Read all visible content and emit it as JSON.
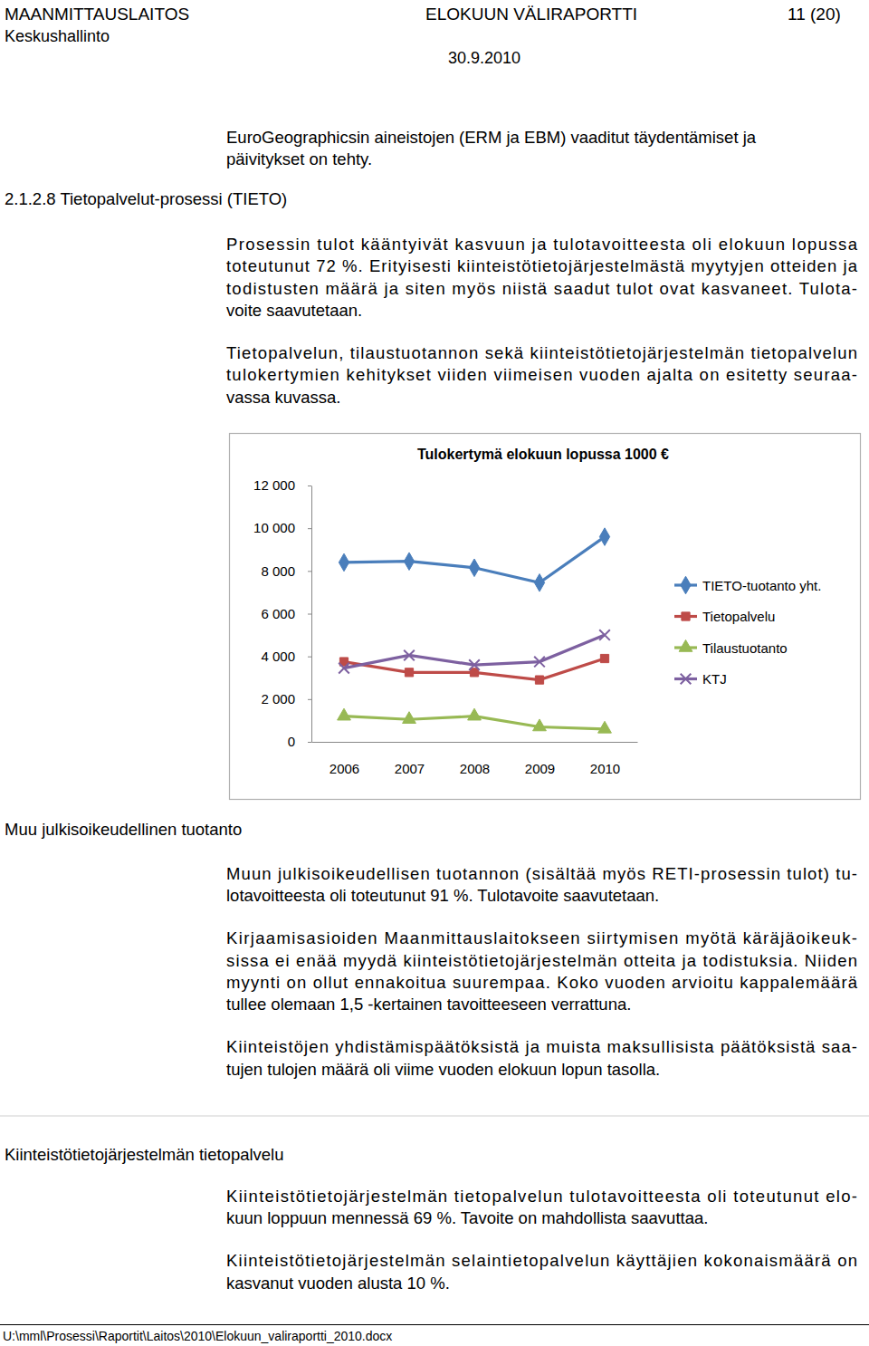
{
  "header": {
    "organization": "MAANMITTAUSLAITOS",
    "unit": "Keskushallinto",
    "document": "ELOKUUN VÄLIRAPORTTI",
    "page": "11 (20)",
    "date": "30.9.2010"
  },
  "sections": [
    {
      "paragraphs": [
        [
          "EuroGeographicsin aineistojen (ERM ja EBM) vaaditut täydentämiset ja",
          "päivitykset on tehty."
        ]
      ]
    },
    {
      "heading": "2.1.2.8 Tietopalvelut-prosessi (TIETO)",
      "paragraphs": [
        [
          "Prosessin tulot kääntyivät kasvuun ja tulotavoitteesta oli elokuun lopussa",
          "toteutunut 72 %. Erityisesti kiinteistötietojärjestelmästä myytyjen otteiden ja",
          "todistusten määrä ja siten myös niistä saadut tulot ovat kasvaneet. Tulota-",
          "voite saavutetaan."
        ],
        [
          "Tietopalvelun, tilaustuotannon sekä kiinteistötietojärjestelmän tietopalvelun",
          "tulokertymien kehitykset viiden viimeisen vuoden ajalta on esitetty seuraa-",
          "vassa kuvassa."
        ]
      ]
    },
    {
      "heading": "Muu julkisoikeudellinen tuotanto",
      "paragraphs": [
        [
          "Muun julkisoikeudellisen tuotannon (sisältää myös RETI-prosessin tulot) tu-",
          "lotavoitteesta oli toteutunut 91 %. Tulotavoite saavutetaan."
        ],
        [
          "Kirjaamisasioiden Maanmittauslaitokseen siirtymisen myötä käräjäoikeuk-",
          "sissa ei enää myydä kiinteistötietojärjestelmän otteita ja todistuksia. Niiden",
          "myynti on ollut ennakoitua suurempaa. Koko vuoden arvioitu kappalemäärä",
          "tullee olemaan 1,5 -kertainen tavoitteeseen verrattuna."
        ],
        [
          "Kiinteistöjen yhdistämispäätöksistä ja muista maksullisista päätöksistä saa-",
          "tujen tulojen määrä oli viime vuoden elokuun lopun tasolla."
        ]
      ]
    },
    {
      "heading": "Kiinteistötietojärjestelmän tietopalvelu",
      "paragraphs": [
        [
          "Kiinteistötietojärjestelmän tietopalvelun tulotavoitteesta oli toteutunut elo-",
          "kuun loppuun mennessä 69 %. Tavoite on mahdollista saavuttaa."
        ],
        [
          "Kiinteistötietojärjestelmän selaintietopalvelun käyttäjien kokonaismäärä on",
          "kasvanut vuoden alusta 10 %."
        ]
      ]
    }
  ],
  "chart_data": {
    "type": "line",
    "title": "Tulokertymä elokuun lopussa 1000 €",
    "categories": [
      "2006",
      "2007",
      "2008",
      "2009",
      "2010"
    ],
    "ylim": [
      0,
      12000
    ],
    "yticks": [
      0,
      {
        "value": 2000,
        "label": "2 000"
      },
      {
        "value": 4000,
        "label": "4 000"
      },
      {
        "value": 6000,
        "label": "6 000"
      },
      {
        "value": 8000,
        "label": "8 000"
      },
      {
        "value": 10000,
        "label": "10 000"
      },
      {
        "value": 12000,
        "label": "12 000"
      }
    ],
    "grid": false,
    "legend": "right",
    "series": [
      {
        "name": "TIETO-tuotanto yht.",
        "color": "#4a7ebb",
        "marker": "diamond",
        "values": [
          8400,
          8450,
          8150,
          7450,
          9600
        ]
      },
      {
        "name": "Tietopalvelu",
        "color": "#be4b48",
        "marker": "square",
        "values": [
          3750,
          3250,
          3250,
          2900,
          3900
        ]
      },
      {
        "name": "Tilaustuotanto",
        "color": "#98b954",
        "marker": "triangle",
        "values": [
          1200,
          1050,
          1200,
          700,
          600
        ]
      },
      {
        "name": "KTJ",
        "color": "#7d60a0",
        "marker": "x",
        "values": [
          3450,
          4050,
          3600,
          3750,
          5000
        ]
      }
    ]
  },
  "footer": {
    "path": "U:\\mml\\Prosessi\\Raportit\\Laitos\\2010\\Elokuun_valiraportti_2010.docx"
  }
}
